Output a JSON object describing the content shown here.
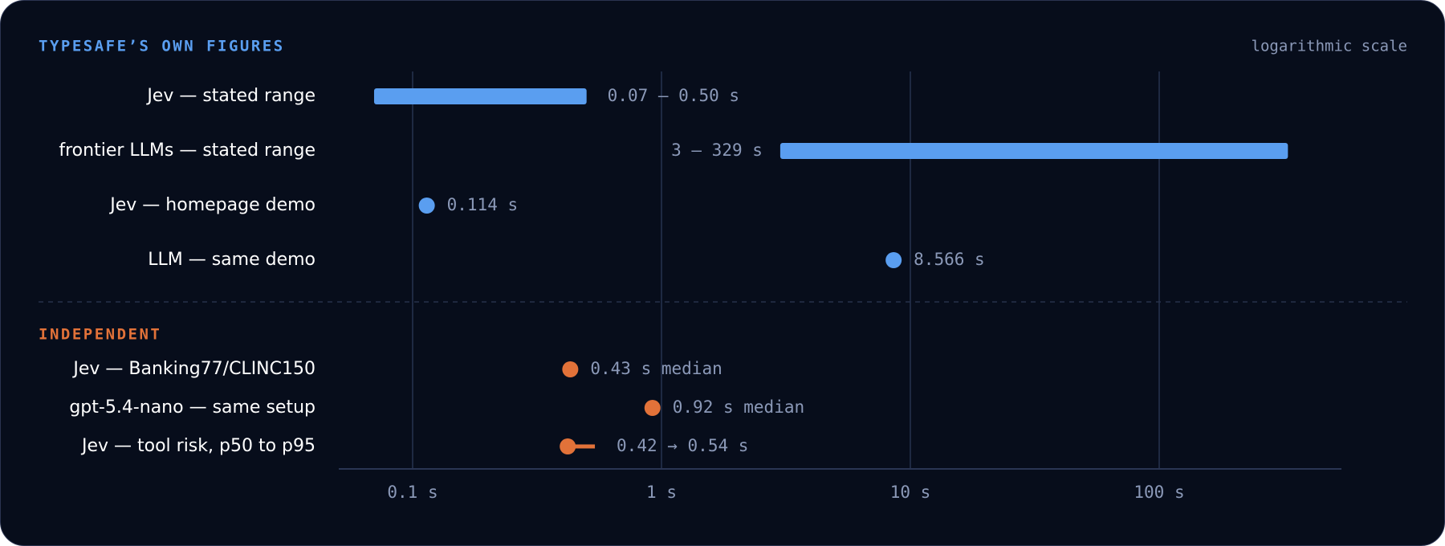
{
  "chart_data": {
    "type": "range",
    "scale": "logarithmic",
    "scale_label": "logarithmic scale",
    "xlim": [
      0.05,
      1000
    ],
    "ticks": [
      {
        "value": 0.1,
        "label": "0.1 s"
      },
      {
        "value": 1,
        "label": "1 s"
      },
      {
        "value": 10,
        "label": "10 s"
      },
      {
        "value": 100,
        "label": "100 s"
      }
    ],
    "groups": [
      {
        "title": "TYPESAFE’S OWN FIGURES",
        "color": "#5a9ef0",
        "rows": [
          {
            "label": "Jev — stated range",
            "kind": "range",
            "low": 0.07,
            "high": 0.5,
            "annotation": "0.07 – 0.50 s",
            "annotation_side": "right"
          },
          {
            "label": "frontier LLMs — stated range",
            "kind": "range",
            "low": 3,
            "high": 329,
            "annotation": "3 – 329 s",
            "annotation_side": "left"
          },
          {
            "label": "Jev — homepage demo",
            "kind": "point",
            "value": 0.114,
            "annotation": "0.114 s"
          },
          {
            "label": "LLM — same demo",
            "kind": "point",
            "value": 8.566,
            "annotation": "8.566 s"
          }
        ]
      },
      {
        "title": "INDEPENDENT",
        "color": "#e27239",
        "rows": [
          {
            "label": "Jev — Banking77/CLINC150",
            "kind": "point",
            "value": 0.43,
            "annotation": "0.43 s median"
          },
          {
            "label": "gpt-5.4-nano — same setup",
            "kind": "point",
            "value": 0.92,
            "annotation": "0.92 s median"
          },
          {
            "label": "Jev — tool risk, p50 to p95",
            "kind": "lollipop",
            "low": 0.42,
            "high": 0.54,
            "annotation": "0.42 → 0.54 s"
          }
        ]
      }
    ]
  },
  "colors": {
    "background": "#070d1b",
    "gridline": "#1e2942",
    "axis": "#2a3553",
    "row_label": "#ffffff",
    "annotation": "#8b99b8"
  }
}
